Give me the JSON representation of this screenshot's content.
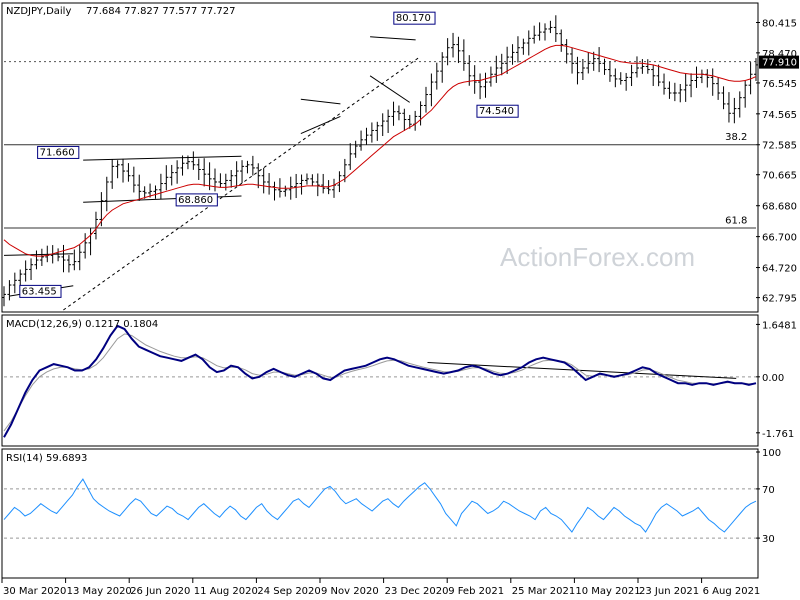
{
  "chart_data": [
    {
      "type": "bar",
      "bar_style": "ohlc",
      "title": "NZDJPY,Daily",
      "ohlc_header": "77.684 77.827 77.577 77.727",
      "watermark": "ActionForex.com",
      "current_price": "77.910",
      "y_ticks": [
        "80.415",
        "78.470",
        "76.545",
        "74.565",
        "72.585",
        "70.665",
        "68.680",
        "66.700",
        "64.720",
        "62.795"
      ],
      "y_range": [
        62.0,
        81.6
      ],
      "x_labels": [
        "30 Mar 2020",
        "13 May 2020",
        "26 Jun 2020",
        "11 Aug 2020",
        "24 Sep 2020",
        "9 Nov 2020",
        "23 Dec 2020",
        "9 Feb 2021",
        "25 Mar 2021",
        "10 May 2021",
        "23 Jun 2021",
        "6 Aug 2021"
      ],
      "x_range": [
        0,
        380
      ],
      "close": [
        63.0,
        63.6,
        63.9,
        64.3,
        64.6,
        64.9,
        65.2,
        65.4,
        65.5,
        65.6,
        65.4,
        65.2,
        64.9,
        65.1,
        65.7,
        66.3,
        66.9,
        67.8,
        69.0,
        70.2,
        71.2,
        71.3,
        70.9,
        70.6,
        70.0,
        69.6,
        69.5,
        69.6,
        69.7,
        70.1,
        70.5,
        70.8,
        71.1,
        71.4,
        71.5,
        71.3,
        71.0,
        70.7,
        70.4,
        70.2,
        70.1,
        70.3,
        70.6,
        70.9,
        71.2,
        71.3,
        71.1,
        70.6,
        70.2,
        69.9,
        69.7,
        69.6,
        69.7,
        69.9,
        70.1,
        70.3,
        70.4,
        70.2,
        70.0,
        69.8,
        69.7,
        70.0,
        70.6,
        71.3,
        72.0,
        72.5,
        72.9,
        73.2,
        73.5,
        73.8,
        74.1,
        74.4,
        74.7,
        74.6,
        74.2,
        73.9,
        74.4,
        75.1,
        75.8,
        76.6,
        77.3,
        78.2,
        78.8,
        79.0,
        78.6,
        77.8,
        77.0,
        76.6,
        76.3,
        76.6,
        77.1,
        77.5,
        77.8,
        78.2,
        78.5,
        78.8,
        79.1,
        79.4,
        79.6,
        79.8,
        80.0,
        80.1,
        79.7,
        79.0,
        78.4,
        77.8,
        77.2,
        77.5,
        77.8,
        78.1,
        77.8,
        77.4,
        77.0,
        76.8,
        76.7,
        76.9,
        77.2,
        77.5,
        77.6,
        77.4,
        77.0,
        76.6,
        76.2,
        75.9,
        75.9,
        76.1,
        76.4,
        76.7,
        76.9,
        77.1,
        76.9,
        76.5,
        75.9,
        75.2,
        74.6,
        74.9,
        75.6,
        76.4,
        77.1,
        77.7
      ],
      "ema": [
        66.5,
        66.2,
        66.0,
        65.8,
        65.6,
        65.5,
        65.45,
        65.45,
        65.5,
        65.6,
        65.7,
        65.8,
        65.9,
        66.0,
        66.2,
        66.5,
        66.8,
        67.2,
        67.7,
        68.1,
        68.4,
        68.6,
        68.8,
        68.9,
        69.0,
        69.1,
        69.2,
        69.3,
        69.4,
        69.5,
        69.6,
        69.7,
        69.8,
        69.9,
        70.0,
        70.05,
        70.05,
        70.0,
        69.95,
        69.9,
        69.85,
        69.85,
        69.9,
        69.95,
        70.0,
        70.05,
        70.05,
        70.0,
        69.95,
        69.9,
        69.85,
        69.8,
        69.8,
        69.8,
        69.85,
        69.9,
        69.95,
        69.95,
        69.95,
        69.9,
        69.9,
        70.0,
        70.2,
        70.4,
        70.7,
        71.0,
        71.3,
        71.6,
        71.9,
        72.2,
        72.5,
        72.8,
        73.1,
        73.3,
        73.5,
        73.7,
        73.9,
        74.2,
        74.5,
        74.8,
        75.2,
        75.6,
        76.0,
        76.3,
        76.5,
        76.6,
        76.65,
        76.7,
        76.7,
        76.8,
        76.9,
        77.0,
        77.1,
        77.3,
        77.5,
        77.7,
        77.9,
        78.1,
        78.3,
        78.5,
        78.7,
        78.85,
        78.95,
        78.95,
        78.9,
        78.8,
        78.7,
        78.6,
        78.5,
        78.4,
        78.3,
        78.2,
        78.1,
        78.0,
        77.9,
        77.85,
        77.8,
        77.8,
        77.8,
        77.75,
        77.7,
        77.6,
        77.5,
        77.4,
        77.3,
        77.2,
        77.15,
        77.1,
        77.1,
        77.1,
        77.05,
        77.0,
        76.9,
        76.8,
        76.7,
        76.65,
        76.65,
        76.7,
        76.8,
        76.95
      ],
      "annotations": [
        {
          "label": "63.455"
        },
        {
          "label": "71.660"
        },
        {
          "label": "68.860"
        },
        {
          "label": "80.170"
        },
        {
          "label": "74.540"
        },
        {
          "label": "38.2"
        },
        {
          "label": "61.8"
        }
      ],
      "levels": {
        "current": 77.91,
        "fib_382": 72.585,
        "fib_618": 67.25
      },
      "lines": {
        "lower_channel": [
          [
            3,
            62.9
          ],
          [
            35,
            63.55
          ]
        ],
        "upper_box": [
          [
            0,
            65.5
          ],
          [
            35,
            65.6
          ]
        ],
        "flag_top": [
          [
            40,
            71.6
          ],
          [
            120,
            71.85
          ]
        ],
        "flag_bottom": [
          [
            40,
            68.9
          ],
          [
            120,
            69.3
          ]
        ],
        "trend_dashed": [
          [
            30,
            62.0
          ],
          [
            210,
            78.2
          ]
        ],
        "wedge_top": [
          [
            150,
            75.5
          ],
          [
            170,
            75.2
          ]
        ],
        "wedge_bottom": [
          [
            150,
            73.3
          ],
          [
            170,
            74.4
          ]
        ],
        "feb_top": [
          [
            185,
            79.5
          ],
          [
            208,
            79.3
          ]
        ],
        "feb_diag": [
          [
            185,
            77.0
          ],
          [
            205,
            75.3
          ]
        ]
      },
      "grid": false
    },
    {
      "type": "line",
      "title": "MACD(12,26,9) 0.1217 0.1804",
      "y_ticks": [
        "1.6481",
        "0.00",
        "-1.761"
      ],
      "y_range": [
        -2.05,
        1.85
      ],
      "macd": [
        -1.9,
        -1.5,
        -1.0,
        -0.5,
        -0.1,
        0.2,
        0.3,
        0.4,
        0.35,
        0.3,
        0.2,
        0.2,
        0.3,
        0.55,
        0.9,
        1.3,
        1.6,
        1.5,
        1.2,
        0.95,
        0.85,
        0.75,
        0.65,
        0.6,
        0.55,
        0.5,
        0.6,
        0.7,
        0.55,
        0.3,
        0.15,
        0.2,
        0.35,
        0.3,
        0.1,
        -0.05,
        0.0,
        0.15,
        0.25,
        0.15,
        0.05,
        0.0,
        0.1,
        0.2,
        0.1,
        -0.05,
        -0.1,
        0.05,
        0.2,
        0.25,
        0.3,
        0.35,
        0.45,
        0.55,
        0.6,
        0.55,
        0.45,
        0.35,
        0.3,
        0.25,
        0.2,
        0.15,
        0.1,
        0.15,
        0.2,
        0.3,
        0.35,
        0.3,
        0.2,
        0.1,
        0.05,
        0.1,
        0.2,
        0.3,
        0.45,
        0.55,
        0.6,
        0.55,
        0.5,
        0.45,
        0.3,
        0.1,
        -0.1,
        0.0,
        0.1,
        0.05,
        0.0,
        0.05,
        0.1,
        0.2,
        0.3,
        0.25,
        0.1,
        0.0,
        -0.1,
        -0.2,
        -0.2,
        -0.25,
        -0.2,
        -0.2,
        -0.25,
        -0.2,
        -0.15,
        -0.2,
        -0.2,
        -0.25,
        -0.2
      ],
      "signal": [
        -1.7,
        -1.4,
        -1.0,
        -0.6,
        -0.25,
        0.0,
        0.15,
        0.25,
        0.3,
        0.3,
        0.25,
        0.22,
        0.25,
        0.38,
        0.6,
        0.9,
        1.2,
        1.35,
        1.3,
        1.15,
        1.0,
        0.9,
        0.8,
        0.72,
        0.65,
        0.6,
        0.6,
        0.63,
        0.6,
        0.48,
        0.35,
        0.28,
        0.3,
        0.3,
        0.22,
        0.1,
        0.05,
        0.08,
        0.15,
        0.15,
        0.1,
        0.05,
        0.07,
        0.12,
        0.12,
        0.05,
        -0.02,
        0.0,
        0.1,
        0.17,
        0.23,
        0.28,
        0.35,
        0.43,
        0.5,
        0.52,
        0.5,
        0.43,
        0.37,
        0.31,
        0.26,
        0.21,
        0.16,
        0.15,
        0.17,
        0.23,
        0.28,
        0.29,
        0.25,
        0.17,
        0.11,
        0.1,
        0.14,
        0.21,
        0.32,
        0.42,
        0.5,
        0.52,
        0.51,
        0.48,
        0.38,
        0.22,
        0.05,
        0.02,
        0.06,
        0.06,
        0.03,
        0.04,
        0.07,
        0.13,
        0.21,
        0.23,
        0.16,
        0.07,
        -0.02,
        -0.11,
        -0.15,
        -0.2,
        -0.2,
        -0.2,
        -0.22,
        -0.21,
        -0.18,
        -0.19,
        -0.19,
        -0.22,
        -0.21
      ],
      "trendline": [
        [
          214,
          0.45
        ],
        [
          370,
          -0.05
        ]
      ]
    },
    {
      "type": "line",
      "title": "RSI(14) 59.6893",
      "y_ticks": [
        "100",
        "70",
        "30"
      ],
      "y_range": [
        0,
        100
      ],
      "rsi": [
        45,
        50,
        55,
        52,
        48,
        50,
        54,
        58,
        55,
        52,
        50,
        55,
        60,
        65,
        72,
        78,
        70,
        62,
        58,
        55,
        52,
        50,
        48,
        53,
        58,
        62,
        60,
        55,
        50,
        48,
        52,
        56,
        54,
        50,
        48,
        45,
        50,
        55,
        58,
        54,
        50,
        47,
        52,
        56,
        53,
        48,
        45,
        50,
        55,
        58,
        52,
        48,
        45,
        50,
        55,
        60,
        62,
        58,
        55,
        60,
        65,
        70,
        72,
        68,
        62,
        58,
        60,
        62,
        58,
        55,
        52,
        56,
        60,
        62,
        58,
        55,
        60,
        64,
        68,
        72,
        75,
        70,
        64,
        58,
        50,
        45,
        40,
        50,
        55,
        60,
        58,
        54,
        50,
        52,
        55,
        60,
        58,
        55,
        52,
        50,
        48,
        45,
        52,
        55,
        50,
        48,
        45,
        40,
        35,
        42,
        48,
        55,
        52,
        48,
        45,
        50,
        55,
        52,
        48,
        45,
        42,
        40,
        35,
        42,
        50,
        55,
        58,
        55,
        52,
        48,
        50,
        52,
        55,
        50,
        45,
        42,
        38,
        35,
        40,
        45,
        50,
        55,
        58,
        60
      ]
    }
  ]
}
